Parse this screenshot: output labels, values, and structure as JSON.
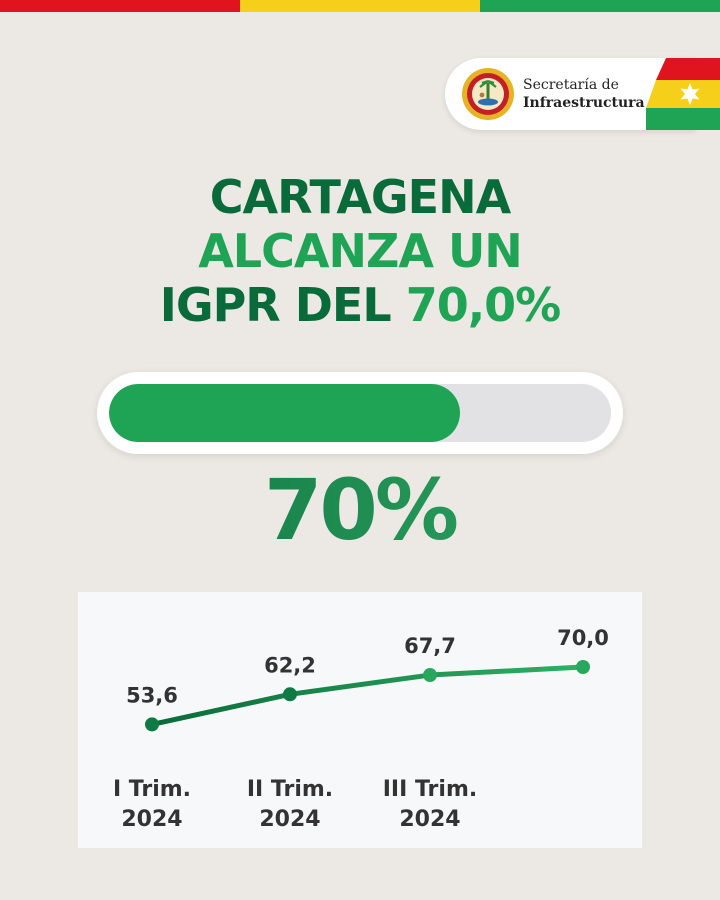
{
  "colors": {
    "red": "#e0141f",
    "yellow": "#f6cf1a",
    "green": "#1fa456",
    "dark_green": "#0a6b3a",
    "background": "#ece8e3"
  },
  "logo": {
    "line1": "Secretaría de",
    "line2": "Infraestructura",
    "seal_text": "DISTRITO DE CARTAGENA DE INDIAS",
    "icon": "city-seal-icon"
  },
  "headline": {
    "line1": "CARTAGENA",
    "line2": "ALCANZA UN",
    "line3a": "IGPR DEL ",
    "line3b": "70,0%"
  },
  "progress": {
    "value": 0.7,
    "fill_color": "#1fa456"
  },
  "big_percent": "70%",
  "chart_data": {
    "type": "line",
    "categories": [
      [
        "I Trim.",
        "2024"
      ],
      [
        "II Trim.",
        "2024"
      ],
      [
        "III Trim.",
        "2024"
      ],
      [
        "",
        ""
      ]
    ],
    "series": [
      {
        "values": [
          53.6,
          62.2,
          67.7,
          70.0
        ],
        "labels": [
          "53,6",
          "62,2",
          "67,7",
          "70,0"
        ]
      }
    ],
    "ylim": [
      40,
      80
    ],
    "grid": false,
    "legend": "none"
  }
}
